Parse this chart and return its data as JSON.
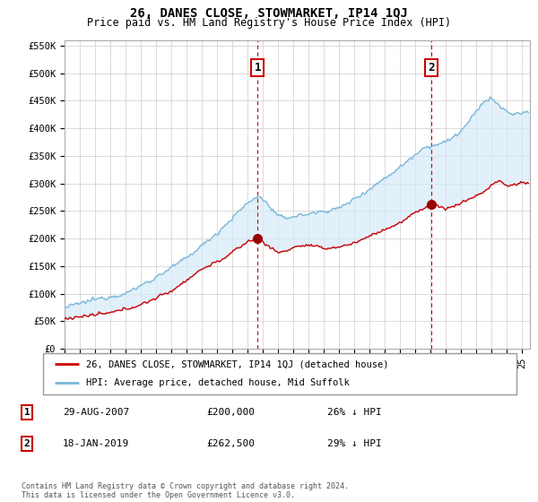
{
  "title": "26, DANES CLOSE, STOWMARKET, IP14 1QJ",
  "subtitle": "Price paid vs. HM Land Registry's House Price Index (HPI)",
  "ylim": [
    0,
    560000
  ],
  "yticks": [
    0,
    50000,
    100000,
    150000,
    200000,
    250000,
    300000,
    350000,
    400000,
    450000,
    500000,
    550000
  ],
  "ytick_labels": [
    "£0",
    "£50K",
    "£100K",
    "£150K",
    "£200K",
    "£250K",
    "£300K",
    "£350K",
    "£400K",
    "£450K",
    "£500K",
    "£550K"
  ],
  "xlim_start": 1995.0,
  "xlim_end": 2025.5,
  "hpi_color": "#7ab8d9",
  "hpi_fill_color": "#d6eaf8",
  "price_color": "#cc0000",
  "marker_color": "#990000",
  "vline_color": "#cc0000",
  "sale1_x": 2007.65,
  "sale1_y": 200000,
  "sale2_x": 2019.05,
  "sale2_y": 262500,
  "legend_price_label": "26, DANES CLOSE, STOWMARKET, IP14 1QJ (detached house)",
  "legend_hpi_label": "HPI: Average price, detached house, Mid Suffolk",
  "background_color": "#ffffff",
  "grid_color": "#cccccc",
  "footer": "Contains HM Land Registry data © Crown copyright and database right 2024.\nThis data is licensed under the Open Government Licence v3.0."
}
